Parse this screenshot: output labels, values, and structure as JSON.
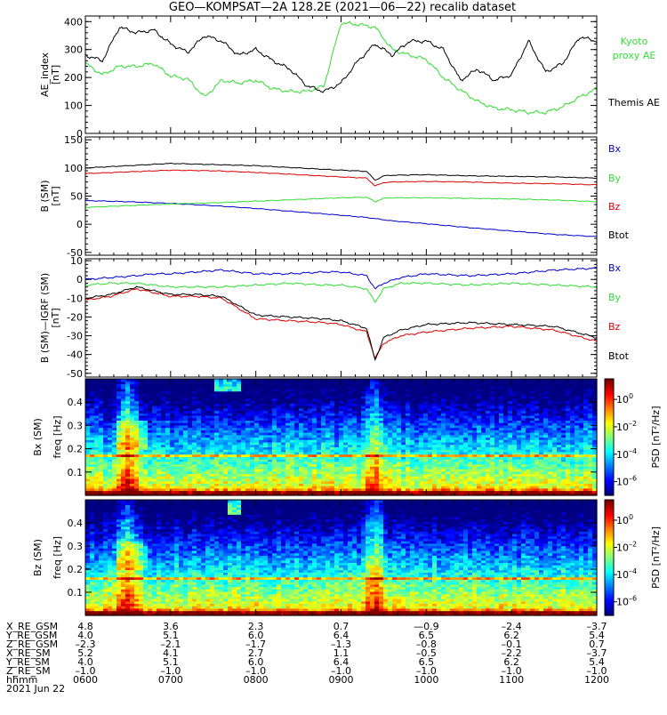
{
  "title": "GEO—KOMPSAT—2A 128.2E (2021—06—22) recalib dataset",
  "colors": {
    "black": "#000000",
    "blue": "#0000cc",
    "green": "#33dd33",
    "red": "#dd0000",
    "frame": "#000000"
  },
  "chart_data": [
    {
      "type": "line",
      "panel": "ae",
      "ylabel": "AE_index",
      "yunit": "[nT]",
      "ylim": [
        0,
        420
      ],
      "yticks": [
        0,
        100,
        200,
        300,
        400
      ],
      "xlim": [
        0,
        6
      ],
      "x_hours": [
        0.0,
        0.2,
        0.4,
        0.6,
        0.8,
        1.0,
        1.2,
        1.4,
        1.6,
        1.8,
        2.0,
        2.2,
        2.4,
        2.6,
        2.8,
        3.0,
        3.2,
        3.4,
        3.6,
        3.8,
        4.0,
        4.2,
        4.4,
        4.6,
        4.8,
        5.0,
        5.2,
        5.4,
        5.6,
        5.8,
        6.0
      ],
      "series": [
        {
          "name": "Kyoto proxy AE",
          "legend": [
            "Kyoto",
            "proxy AE"
          ],
          "color": "green",
          "values": [
            250,
            210,
            240,
            240,
            250,
            205,
            195,
            130,
            190,
            180,
            190,
            160,
            150,
            150,
            170,
            395,
            390,
            380,
            300,
            280,
            265,
            200,
            155,
            115,
            90,
            85,
            75,
            75,
            95,
            130,
            160
          ]
        },
        {
          "name": "Themis AE",
          "legend": [
            "Themis AE"
          ],
          "color": "black",
          "values": [
            280,
            260,
            380,
            360,
            370,
            320,
            290,
            350,
            330,
            280,
            300,
            260,
            230,
            170,
            150,
            180,
            260,
            320,
            280,
            330,
            330,
            300,
            190,
            230,
            190,
            210,
            330,
            220,
            250,
            345,
            330
          ]
        }
      ]
    },
    {
      "type": "line",
      "panel": "bsm",
      "ylabel": "B (SM)",
      "yunit": "[nT]",
      "ylim": [
        -55,
        155
      ],
      "yticks": [
        -50,
        0,
        50,
        100,
        150
      ],
      "xlim": [
        0,
        6
      ],
      "x_hours": [
        0.0,
        0.5,
        1.0,
        1.5,
        2.0,
        2.5,
        3.0,
        3.3,
        3.4,
        3.5,
        3.6,
        4.0,
        4.5,
        5.0,
        5.5,
        6.0
      ],
      "series": [
        {
          "name": "Bx",
          "color": "blue",
          "values": [
            42,
            40,
            37,
            33,
            28,
            22,
            16,
            12,
            10,
            8,
            6,
            1,
            -6,
            -12,
            -18,
            -22
          ]
        },
        {
          "name": "By",
          "color": "green",
          "values": [
            30,
            33,
            36,
            38,
            41,
            44,
            47,
            48,
            40,
            46,
            47,
            47,
            46,
            45,
            43,
            40
          ]
        },
        {
          "name": "Bz",
          "color": "red",
          "values": [
            90,
            93,
            96,
            95,
            92,
            88,
            84,
            82,
            68,
            74,
            75,
            76,
            75,
            73,
            72,
            70
          ]
        },
        {
          "name": "Btot",
          "color": "black",
          "values": [
            100,
            104,
            108,
            106,
            104,
            100,
            96,
            94,
            78,
            86,
            87,
            88,
            86,
            85,
            84,
            82
          ]
        }
      ]
    },
    {
      "type": "line",
      "panel": "bigrf",
      "ylabel": "B (SM)—IGRF (SM)",
      "yunit": "[nT]",
      "ylim": [
        -52,
        11
      ],
      "yticks": [
        -50,
        -40,
        -30,
        -20,
        -10,
        0,
        10
      ],
      "xlim": [
        0,
        6
      ],
      "x_hours": [
        0.0,
        0.3,
        0.6,
        0.8,
        1.0,
        1.3,
        1.6,
        2.0,
        2.4,
        2.8,
        3.0,
        3.3,
        3.4,
        3.5,
        3.7,
        4.0,
        4.5,
        5.0,
        5.5,
        6.0
      ],
      "series": [
        {
          "name": "Bx",
          "color": "blue",
          "values": [
            0,
            1,
            2,
            3,
            3,
            4,
            5,
            3,
            3,
            4,
            4,
            2,
            -5,
            -2,
            1,
            3,
            2,
            3,
            5,
            6
          ]
        },
        {
          "name": "By",
          "color": "green",
          "values": [
            -3,
            -2,
            -2,
            -3,
            -4,
            -4,
            -4,
            -3,
            -2,
            -3,
            -3,
            -5,
            -12,
            -5,
            -2,
            -2,
            -3,
            -2,
            -3,
            -4
          ]
        },
        {
          "name": "Bz",
          "color": "red",
          "values": [
            -11,
            -9,
            -5,
            -7,
            -9,
            -9,
            -10,
            -21,
            -22,
            -23,
            -24,
            -28,
            -42,
            -34,
            -30,
            -28,
            -26,
            -25,
            -27,
            -33
          ]
        },
        {
          "name": "Btot",
          "color": "black",
          "values": [
            -10,
            -8,
            -4,
            -6,
            -8,
            -8,
            -9,
            -19,
            -20,
            -21,
            -22,
            -26,
            -43,
            -31,
            -27,
            -24,
            -23,
            -24,
            -25,
            -31
          ]
        }
      ]
    },
    {
      "type": "heatmap",
      "panel": "specx",
      "ylabel": "Bx (SM)",
      "ylabel2": "freq [Hz]",
      "ylim": [
        0,
        0.5
      ],
      "yticks": [
        0.1,
        0.2,
        0.3,
        0.4
      ],
      "xlim": [
        0,
        6
      ],
      "colorbar": {
        "label": "PSD [nT²/Hz]",
        "ticks": [
          {
            "base": "10",
            "exp": "0",
            "value": 0
          },
          {
            "base": "10",
            "exp": "–2",
            "value": -2
          },
          {
            "base": "10",
            "exp": "–4",
            "value": -4
          },
          {
            "base": "10",
            "exp": "–6",
            "value": -6
          }
        ],
        "range": [
          -7,
          1.5
        ]
      },
      "features": {
        "line_freq": 0.17,
        "hot_times": [
          0.5,
          3.4
        ],
        "hot_patch": {
          "t": [
            1.5,
            1.8
          ],
          "f": [
            0.45,
            0.5
          ]
        }
      }
    },
    {
      "type": "heatmap",
      "panel": "specz",
      "ylabel": "Bz (SM)",
      "ylabel2": "freq [Hz]",
      "ylim": [
        0,
        0.5
      ],
      "yticks": [
        0.1,
        0.2,
        0.3,
        0.4
      ],
      "xlim": [
        0,
        6
      ],
      "colorbar": {
        "label": "PSD [nT²/Hz]",
        "ticks": [
          {
            "base": "10",
            "exp": "0",
            "value": 0
          },
          {
            "base": "10",
            "exp": "–2",
            "value": -2
          },
          {
            "base": "10",
            "exp": "–4",
            "value": -4
          },
          {
            "base": "10",
            "exp": "–6",
            "value": -6
          }
        ],
        "range": [
          -7,
          1.5
        ]
      },
      "features": {
        "line_freq": 0.16,
        "hot_times": [
          0.5,
          3.4
        ],
        "hot_patch": {
          "t": [
            1.65,
            1.8
          ],
          "f": [
            0.44,
            0.5
          ]
        }
      }
    }
  ],
  "ephemeris": {
    "rows": [
      {
        "label": "X_RE_GSM",
        "values": [
          "4.8",
          "3.6",
          "2.3",
          "0.7",
          "—0.9",
          "–2.4",
          "–3.7"
        ]
      },
      {
        "label": "Y_RE_GSM",
        "values": [
          "4.0",
          "5.1",
          "6.0",
          "6.4",
          "6.5",
          "6.2",
          "5.4"
        ]
      },
      {
        "label": "Z_RE_GSM",
        "values": [
          "–2.3",
          "–2.1",
          "–1.7",
          "–1.3",
          "–0.8",
          "–0.1",
          "0.7"
        ]
      },
      {
        "label": "X_RE_SM",
        "values": [
          "5.2",
          "4.1",
          "2.7",
          "1.1",
          "–0.5",
          "–2.2",
          "–3.7"
        ]
      },
      {
        "label": "Y_RE_SM",
        "values": [
          "4.0",
          "5.1",
          "6.0",
          "6.4",
          "6.5",
          "6.2",
          "5.4"
        ]
      },
      {
        "label": "Z_RE_SM",
        "values": [
          "–1.0",
          "–1.0",
          "–1.0",
          "–1.0",
          "–1.0",
          "–1.0",
          "–1.0"
        ]
      },
      {
        "label": "hhmm",
        "values": [
          "0600",
          "0700",
          "0800",
          "0900",
          "1000",
          "1100",
          "1200"
        ]
      }
    ],
    "date": "2021 Jun 22"
  }
}
